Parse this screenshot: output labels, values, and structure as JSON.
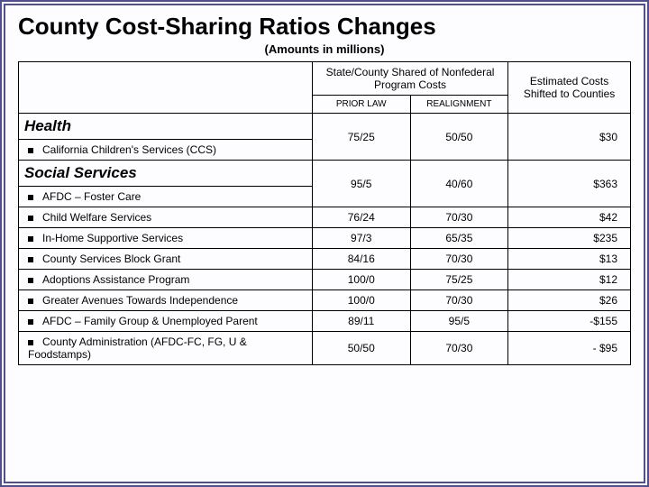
{
  "title": "County Cost-Sharing Ratios Changes",
  "subtitle": "(Amounts in millions)",
  "headers": {
    "shared": "State/County Shared of Nonfederal Program Costs",
    "estimated": "Estimated Costs Shifted to Counties",
    "prior": "PRIOR LAW",
    "realign": "REALIGNMENT"
  },
  "sections": [
    {
      "label": "Health",
      "rows": [
        {
          "name": "California Children's Services (CCS)",
          "prior": "75/25",
          "realign": "50/50",
          "amt": "$30"
        }
      ]
    },
    {
      "label": "Social Services",
      "rows": [
        {
          "name": "AFDC – Foster Care",
          "prior": "95/5",
          "realign": "40/60",
          "amt": "$363"
        },
        {
          "name": "Child Welfare Services",
          "prior": "76/24",
          "realign": "70/30",
          "amt": "$42"
        },
        {
          "name": "In-Home Supportive Services",
          "prior": "97/3",
          "realign": "65/35",
          "amt": "$235"
        },
        {
          "name": "County Services Block Grant",
          "prior": "84/16",
          "realign": "70/30",
          "amt": "$13"
        },
        {
          "name": "Adoptions Assistance Program",
          "prior": "100/0",
          "realign": "75/25",
          "amt": "$12"
        },
        {
          "name": "Greater Avenues Towards Independence",
          "prior": "100/0",
          "realign": "70/30",
          "amt": "$26"
        },
        {
          "name": "AFDC – Family Group & Unemployed Parent",
          "prior": "89/11",
          "realign": "95/5",
          "amt": "-$155"
        },
        {
          "name": "County Administration (AFDC-FC, FG, U & Foodstamps)",
          "prior": "50/50",
          "realign": "70/30",
          "amt": "- $95"
        }
      ]
    }
  ]
}
